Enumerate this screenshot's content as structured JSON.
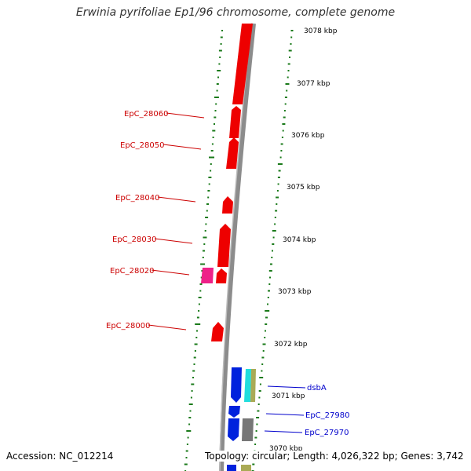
{
  "title": "Erwinia pyrifoliae Ep1/96 chromosome, complete genome",
  "footer": {
    "accession": "Accession: NC_012214",
    "topology": "Topology: circular; Length: 4,026,322 bp; Genes: 3,742"
  },
  "colors": {
    "forward_cds": "#ee0000",
    "reverse_cds": "#0022dd",
    "pink_cds": "#ee2288",
    "cyan_cds": "#22dddd",
    "olive_cds": "#aaaa55",
    "gray_cds": "#777777",
    "backbone": "#8c8c8c",
    "gc_dots": "#1a7a1a",
    "label_red": "#cc0000",
    "label_blue": "#0000cc"
  },
  "kbp_ticks": [
    "3078 kbp",
    "3077 kbp",
    "3076 kbp",
    "3075 kbp",
    "3074 kbp",
    "3073 kbp",
    "3072 kbp",
    "3071 kbp",
    "3070 kbp"
  ],
  "gene_labels": {
    "left": [
      "EpC_28060",
      "EpC_28050",
      "EpC_28040",
      "EpC_28030",
      "EpC_28020",
      "EpC_28000"
    ],
    "right": [
      "dsbA",
      "EpC_27980",
      "EpC_27970"
    ]
  }
}
